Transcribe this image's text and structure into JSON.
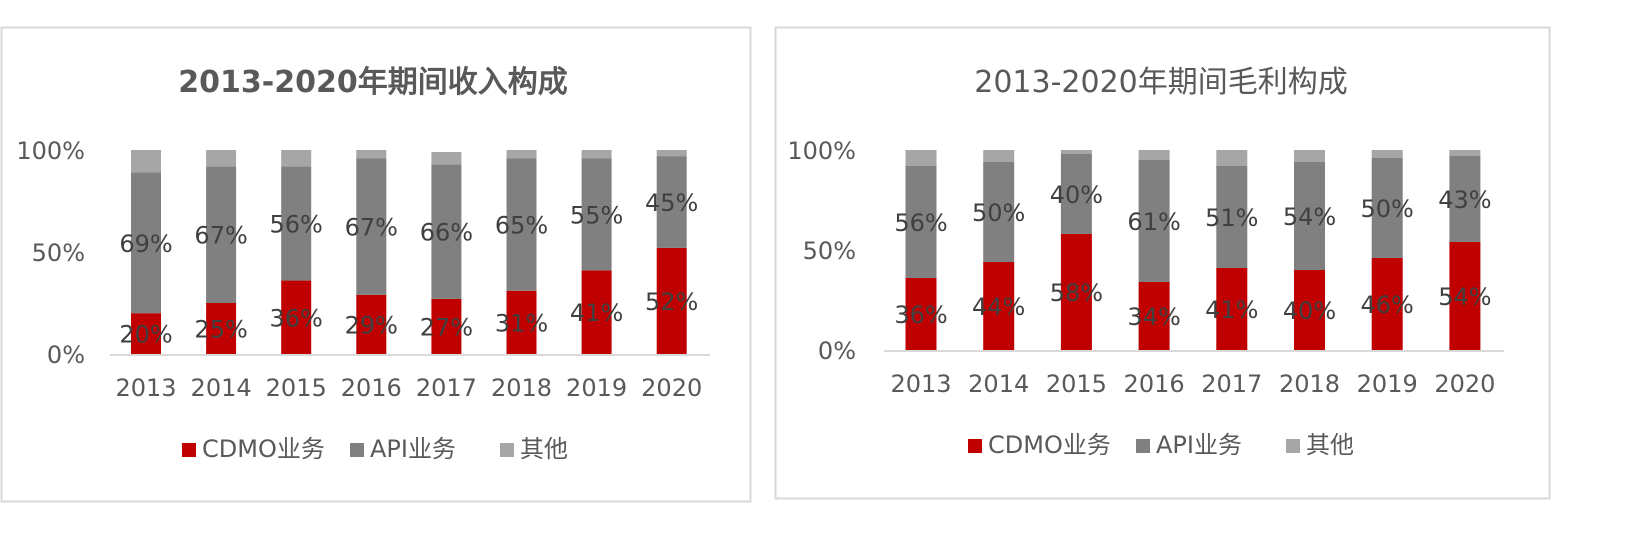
{
  "chart_data": [
    {
      "type": "bar",
      "stacked": true,
      "title": "2013-2020年期间收入构成",
      "title_bold": true,
      "categories": [
        "2013",
        "2014",
        "2015",
        "2016",
        "2017",
        "2018",
        "2019",
        "2020"
      ],
      "series": [
        {
          "name": "CDMO业务",
          "color": "#c00000",
          "values": [
            20,
            25,
            36,
            29,
            27,
            31,
            41,
            52
          ]
        },
        {
          "name": "API业务",
          "color": "#808080",
          "values": [
            69,
            67,
            56,
            67,
            66,
            65,
            55,
            45
          ]
        },
        {
          "name": "其他",
          "color": "#a6a6a6",
          "values": [
            11,
            8,
            8,
            4,
            6,
            4,
            4,
            3
          ]
        }
      ],
      "data_labels": {
        "CDMO业务": [
          "20%",
          "25%",
          "36%",
          "29%",
          "27%",
          "31%",
          "41%",
          "52%"
        ],
        "API业务": [
          "69%",
          "67%",
          "56%",
          "67%",
          "66%",
          "65%",
          "55%",
          "45%"
        ]
      },
      "yticks": [
        "0%",
        "50%",
        "100%"
      ],
      "ylim": [
        0,
        100
      ],
      "legend": "bottom",
      "grid": false
    },
    {
      "type": "bar",
      "stacked": true,
      "title": "2013-2020年期间毛利构成",
      "title_bold": false,
      "categories": [
        "2013",
        "2014",
        "2015",
        "2016",
        "2017",
        "2018",
        "2019",
        "2020"
      ],
      "series": [
        {
          "name": "CDMO业务",
          "color": "#c00000",
          "values": [
            36,
            44,
            58,
            34,
            41,
            40,
            46,
            54
          ]
        },
        {
          "name": "API业务",
          "color": "#808080",
          "values": [
            56,
            50,
            40,
            61,
            51,
            54,
            50,
            43
          ]
        },
        {
          "name": "其他",
          "color": "#a6a6a6",
          "values": [
            8,
            6,
            2,
            5,
            8,
            6,
            4,
            3
          ]
        }
      ],
      "data_labels": {
        "CDMO业务": [
          "36%",
          "44%",
          "58%",
          "34%",
          "41%",
          "40%",
          "46%",
          "54%"
        ],
        "API业务": [
          "56%",
          "50%",
          "40%",
          "61%",
          "51%",
          "54%",
          "50%",
          "43%"
        ]
      },
      "yticks": [
        "0%",
        "50%",
        "100%"
      ],
      "ylim": [
        0,
        100
      ],
      "legend": "bottom",
      "grid": false
    }
  ]
}
